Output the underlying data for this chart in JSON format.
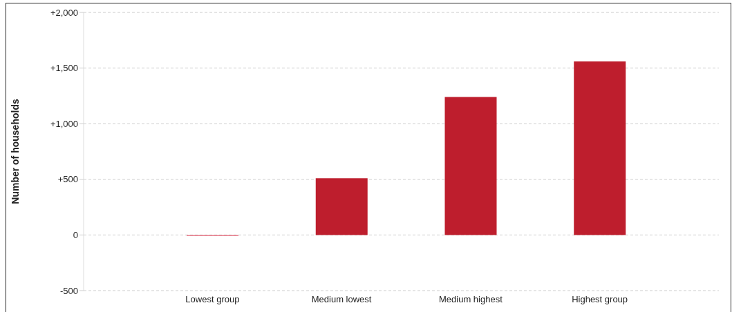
{
  "chart_data": {
    "type": "bar",
    "ylabel": "Number of households",
    "categories": [
      "Lowest group",
      "Medium lowest",
      "Medium highest",
      "Highest group"
    ],
    "values": [
      -10,
      510,
      1240,
      1560
    ],
    "colors": [
      "#e8808e",
      "#be1e2d",
      "#be1e2d",
      "#be1e2d"
    ],
    "ylim": [
      -500,
      2000
    ],
    "yticks": [
      {
        "value": -500,
        "label": "-500"
      },
      0,
      {
        "value": 500,
        "label": "+500"
      },
      {
        "value": 1000,
        "label": "+1,000"
      },
      {
        "value": 1500,
        "label": "+1,500"
      },
      {
        "value": 2000,
        "label": "+2,000"
      }
    ],
    "grid": "y"
  }
}
